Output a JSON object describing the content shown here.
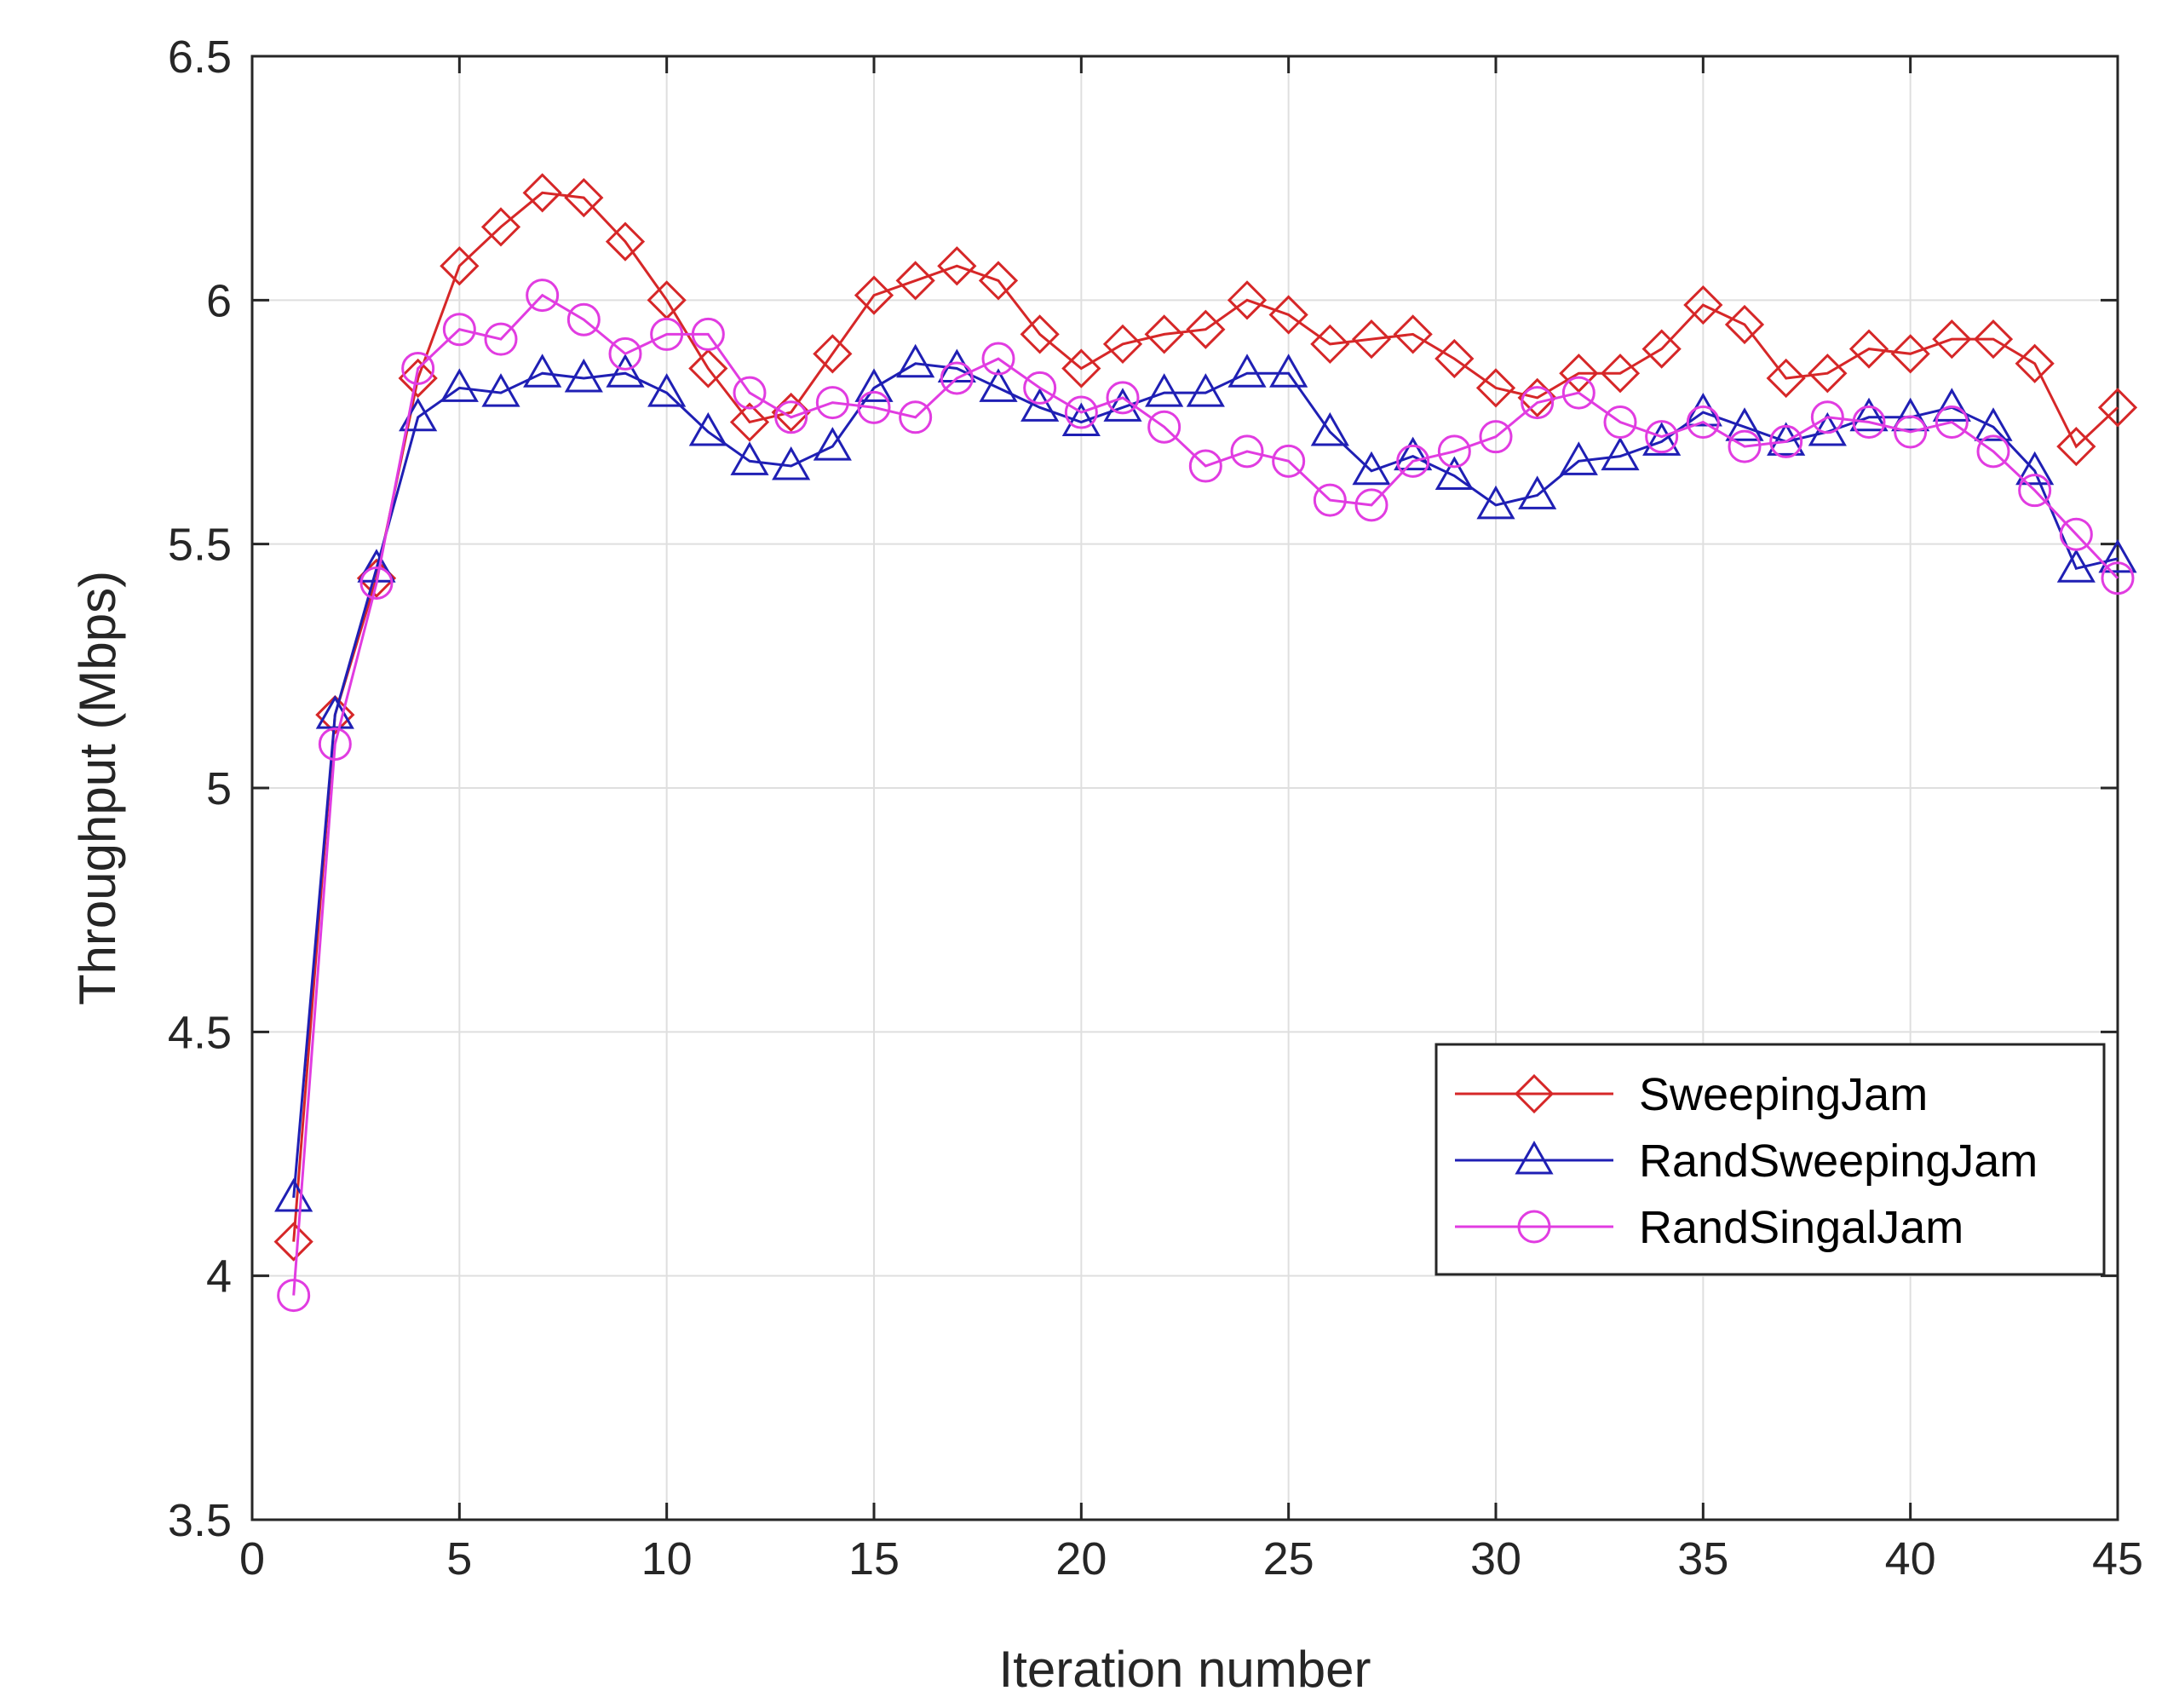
{
  "chart_data": {
    "type": "line",
    "title": "",
    "xlabel": "Iteration number",
    "ylabel": "Throughput (Mbps)",
    "xlim": [
      0,
      45
    ],
    "ylim": [
      3.5,
      6.5
    ],
    "xticks": [
      0,
      5,
      10,
      15,
      20,
      25,
      30,
      35,
      40,
      45
    ],
    "yticks": [
      3.5,
      4,
      4.5,
      5,
      5.5,
      6,
      6.5
    ],
    "xtick_labels": [
      "0",
      "5",
      "10",
      "15",
      "20",
      "25",
      "30",
      "35",
      "40",
      "45"
    ],
    "ytick_labels": [
      "3.5",
      "4",
      "4.5",
      "5",
      "5.5",
      "6",
      "6.5"
    ],
    "grid": true,
    "legend_position": "lower-right",
    "x": [
      1,
      2,
      3,
      4,
      5,
      6,
      7,
      8,
      9,
      10,
      11,
      12,
      13,
      14,
      15,
      16,
      17,
      18,
      19,
      20,
      21,
      22,
      23,
      24,
      25,
      26,
      27,
      28,
      29,
      30,
      31,
      32,
      33,
      34,
      35,
      36,
      37,
      38,
      39,
      40,
      41,
      42,
      43,
      44,
      45
    ],
    "series": [
      {
        "name": "SweepingJam",
        "color": "#d62728",
        "marker": "diamond",
        "values": [
          4.07,
          5.15,
          5.43,
          5.84,
          6.07,
          6.15,
          6.22,
          6.21,
          6.12,
          6.0,
          5.86,
          5.75,
          5.77,
          5.89,
          6.01,
          6.04,
          6.07,
          6.04,
          5.93,
          5.86,
          5.91,
          5.93,
          5.94,
          6.0,
          5.97,
          5.91,
          5.92,
          5.93,
          5.88,
          5.82,
          5.8,
          5.85,
          5.85,
          5.9,
          5.99,
          5.95,
          5.84,
          5.85,
          5.9,
          5.89,
          5.92,
          5.92,
          5.87,
          5.7,
          5.78
        ]
      },
      {
        "name": "RandSweepingJam",
        "color": "#1f1fb4",
        "marker": "triangle",
        "values": [
          4.16,
          5.15,
          5.45,
          5.76,
          5.82,
          5.81,
          5.85,
          5.84,
          5.85,
          5.81,
          5.73,
          5.67,
          5.66,
          5.7,
          5.82,
          5.87,
          5.86,
          5.82,
          5.78,
          5.75,
          5.78,
          5.81,
          5.81,
          5.85,
          5.85,
          5.73,
          5.65,
          5.68,
          5.64,
          5.58,
          5.6,
          5.67,
          5.68,
          5.71,
          5.77,
          5.74,
          5.71,
          5.73,
          5.76,
          5.76,
          5.78,
          5.74,
          5.65,
          5.45,
          5.47
        ]
      },
      {
        "name": "RandSingalJam",
        "color": "#e13ce1",
        "marker": "circle",
        "values": [
          3.96,
          5.09,
          5.42,
          5.86,
          5.94,
          5.92,
          6.01,
          5.96,
          5.89,
          5.93,
          5.93,
          5.81,
          5.76,
          5.79,
          5.78,
          5.76,
          5.84,
          5.88,
          5.82,
          5.77,
          5.8,
          5.74,
          5.66,
          5.69,
          5.67,
          5.59,
          5.58,
          5.67,
          5.69,
          5.72,
          5.79,
          5.81,
          5.75,
          5.72,
          5.75,
          5.7,
          5.71,
          5.76,
          5.75,
          5.73,
          5.75,
          5.69,
          5.61,
          5.52,
          5.43
        ]
      }
    ]
  }
}
